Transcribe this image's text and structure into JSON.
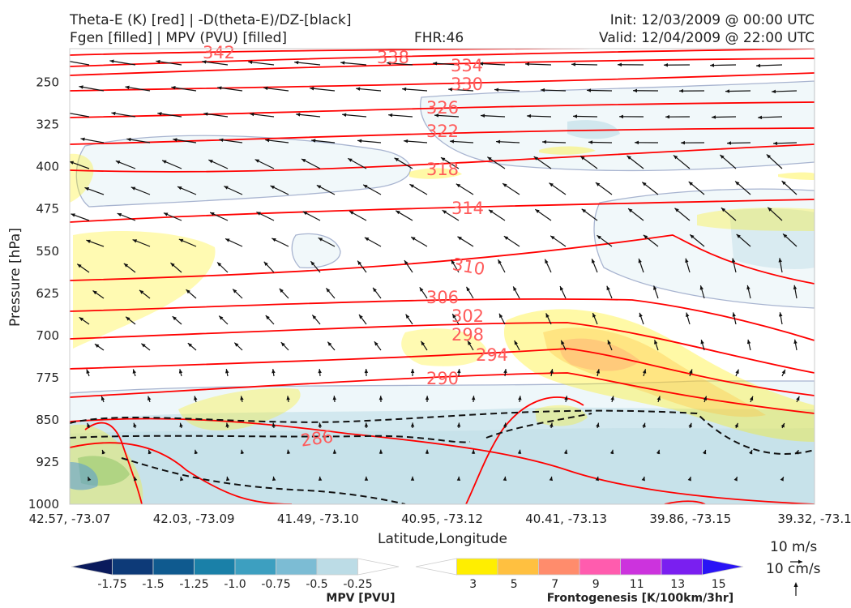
{
  "header": {
    "title_line1": "Theta-E (K) [red] | -D(theta-E)/DZ-[black]",
    "title_line2": "Fgen [filled] | MPV (PVU) [filled]",
    "fhr": "FHR:46",
    "init": "Init: 12/03/2009 @ 00:00 UTC",
    "valid": "Valid: 12/04/2009 @ 22:00 UTC"
  },
  "chart_data": {
    "type": "cross-section",
    "xlabel": "Latitude,Longitude",
    "ylabel": "Pressure [hPa]",
    "x_ticks": [
      "42.57, -73.07",
      "42.03, -73.09",
      "41.49, -73.10",
      "40.95, -73.12",
      "40.41, -73.13",
      "39.86, -73.15",
      "39.32, -73.1"
    ],
    "y_ticks": [
      250,
      325,
      400,
      475,
      550,
      625,
      700,
      775,
      850,
      925,
      1000
    ],
    "ylim": [
      1000,
      190
    ],
    "theta_e_contours": {
      "color": "#ff0000",
      "labels": [
        "342",
        "338",
        "334",
        "330",
        "326",
        "322",
        "318",
        "314",
        "310",
        "306",
        "302",
        "298",
        "294",
        "290",
        "286"
      ]
    },
    "mpv_colorbar": {
      "title": "MPV [PVU]",
      "ticks": [
        "-1.75",
        "-1.5",
        "-1.25",
        "-1.0",
        "-0.75",
        "-0.5",
        "-0.25"
      ],
      "colors": [
        "#0a1a5c",
        "#0d3a78",
        "#0f5a8f",
        "#1a80a8",
        "#3d9fc0",
        "#7cbcd4",
        "#bcdce6",
        "#ffffff"
      ]
    },
    "fgen_colorbar": {
      "title": "Frontogenesis [K/100km/3hr]",
      "ticks": [
        "3",
        "5",
        "7",
        "9",
        "11",
        "13",
        "15"
      ],
      "colors": [
        "#ffffff",
        "#ffee00",
        "#ffc040",
        "#ff8c6c",
        "#ff5cae",
        "#cc33dd",
        "#7a1ff0",
        "#2a14f5"
      ]
    },
    "wind_key": {
      "horizontal": "10 m/s",
      "vertical": "10 cm/s"
    }
  }
}
